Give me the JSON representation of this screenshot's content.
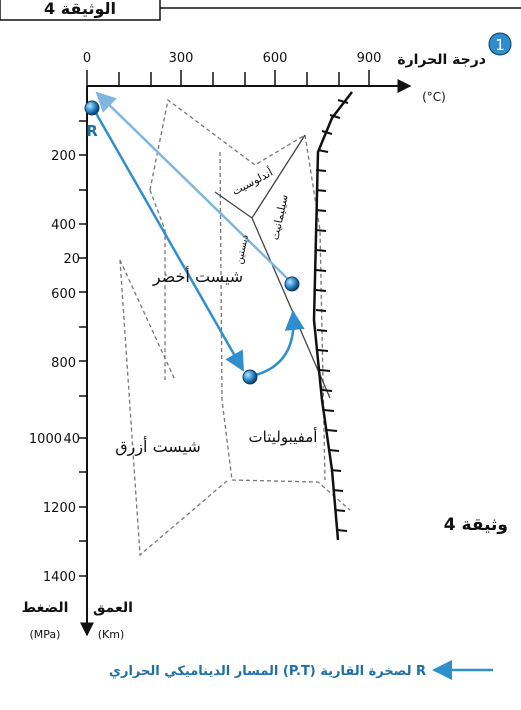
{
  "header": {
    "tab_label": "الوثيقة 4",
    "circle_number": "1"
  },
  "axes": {
    "temperature_title": "درجة الحرارة",
    "temperature_unit": "(°C)",
    "temperature_ticks": [
      "0",
      "300",
      "600",
      "900"
    ],
    "pressure_ticks": [
      "200",
      "400",
      "600",
      "800",
      "1000",
      "1200",
      "1400"
    ],
    "depth_ticks": [
      "20",
      "40"
    ],
    "pressure_title": "الضغط",
    "pressure_unit": "(MPa)",
    "depth_title": "العمق",
    "depth_unit": "(Km)"
  },
  "facies": {
    "green_schist": "شيست أخضر",
    "blue_schist": "شيست أزرق",
    "amphibolite": "أمفيبوليتات",
    "andalusite": "أندلوسيت",
    "sillimanite": "سيليمانيت",
    "kyanite": "ديستين"
  },
  "point_label": "R",
  "document_label": "وثيقة 4",
  "legend": {
    "text": "المسار الديناميكي الحراري (P.T) لصخرة القارية R"
  },
  "colors": {
    "path": "#2f8fce",
    "path_light": "#7fb6df",
    "point": "#1d6fa8",
    "grid": "#777777"
  }
}
